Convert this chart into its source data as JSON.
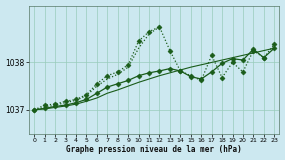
{
  "xlabel": "Graphe pression niveau de la mer (hPa)",
  "bg_color": "#cce8f0",
  "grid_color": "#99ccbb",
  "line_color": "#1a5c1a",
  "xlim": [
    -0.5,
    23.5
  ],
  "ylim": [
    1036.5,
    1039.2
  ],
  "yticks": [
    1037,
    1038
  ],
  "xticks": [
    0,
    1,
    2,
    3,
    4,
    5,
    6,
    7,
    8,
    9,
    10,
    11,
    12,
    13,
    14,
    15,
    16,
    17,
    18,
    19,
    20,
    21,
    22,
    23
  ],
  "series": {
    "line1_x": [
      0,
      1,
      2,
      3,
      4,
      5,
      6,
      7,
      8,
      9,
      10,
      11,
      12
    ],
    "line1_y": [
      1037.0,
      1037.05,
      1037.1,
      1037.15,
      1037.2,
      1037.3,
      1037.5,
      1037.65,
      1037.75,
      1037.9,
      1038.3,
      1038.6,
      1038.75
    ],
    "line2_x": [
      0,
      1,
      2,
      3,
      4,
      5,
      6,
      7,
      8,
      9,
      10,
      11,
      12,
      13,
      14,
      15,
      16,
      17,
      18,
      19,
      20,
      21,
      22,
      23
    ],
    "line2_y": [
      1037.0,
      1037.02,
      1037.05,
      1037.08,
      1037.12,
      1037.18,
      1037.25,
      1037.35,
      1037.42,
      1037.5,
      1037.58,
      1037.65,
      1037.72,
      1037.78,
      1037.84,
      1037.9,
      1037.95,
      1038.0,
      1038.05,
      1038.1,
      1038.15,
      1038.2,
      1038.25,
      1038.3
    ],
    "line3_x": [
      0,
      1,
      2,
      3,
      4,
      5,
      6,
      7,
      8,
      9,
      10,
      11,
      12,
      13,
      14,
      15,
      16,
      17,
      18,
      19,
      20,
      21,
      22,
      23
    ],
    "line3_y": [
      1037.0,
      1037.03,
      1037.07,
      1037.1,
      1037.15,
      1037.22,
      1037.35,
      1037.48,
      1037.55,
      1037.62,
      1037.72,
      1037.78,
      1037.82,
      1037.87,
      1037.82,
      1037.7,
      1037.65,
      1037.8,
      1037.98,
      1038.08,
      1038.05,
      1038.28,
      1038.1,
      1038.3
    ],
    "line4_x": [
      0,
      1,
      2,
      3,
      4,
      5,
      6,
      7,
      8,
      9,
      10,
      11,
      12,
      13,
      14,
      15,
      16,
      17,
      18,
      19,
      20,
      21,
      22,
      23
    ],
    "line4_y": [
      1037.0,
      1037.1,
      1037.12,
      1037.18,
      1037.22,
      1037.32,
      1037.55,
      1037.72,
      1037.8,
      1037.95,
      1038.45,
      1038.65,
      1038.75,
      1038.25,
      1037.82,
      1037.72,
      1037.62,
      1038.15,
      1037.68,
      1038.0,
      1037.8,
      1038.25,
      1038.1,
      1038.38
    ]
  }
}
